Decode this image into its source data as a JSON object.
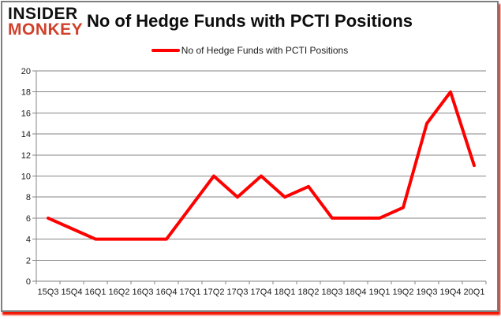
{
  "header": {
    "logo_line1": "INSIDER",
    "logo_line2": "MONKEY",
    "title": "No of Hedge Funds with PCTI Positions"
  },
  "legend": {
    "label": "No of Hedge Funds with PCTI Positions"
  },
  "chart_data": {
    "type": "line",
    "title": "No of Hedge Funds with PCTI Positions",
    "categories": [
      "15Q3",
      "15Q4",
      "16Q1",
      "16Q2",
      "16Q3",
      "16Q4",
      "17Q1",
      "17Q2",
      "17Q3",
      "17Q4",
      "18Q1",
      "18Q2",
      "18Q3",
      "18Q4",
      "19Q1",
      "19Q2",
      "19Q3",
      "19Q4",
      "20Q1"
    ],
    "series": [
      {
        "name": "No of Hedge Funds with PCTI Positions",
        "values": [
          6,
          5,
          4,
          4,
          4,
          4,
          7,
          10,
          8,
          10,
          8,
          9,
          6,
          6,
          6,
          7,
          15,
          18,
          11
        ]
      }
    ],
    "xlabel": "",
    "ylabel": "",
    "ylim": [
      0,
      20
    ],
    "yticks": [
      0,
      2,
      4,
      6,
      8,
      10,
      12,
      14,
      16,
      18,
      20
    ],
    "grid": true,
    "legend_position": "top",
    "colors": {
      "line": "#ff0000",
      "grid": "#868686",
      "axis": "#868686",
      "tick_label": "#1a1a1a",
      "logo_insider": "#111111",
      "logo_monkey": "#d0402a",
      "card_border": "#7f7f7f",
      "shadow": "#f21500"
    }
  }
}
